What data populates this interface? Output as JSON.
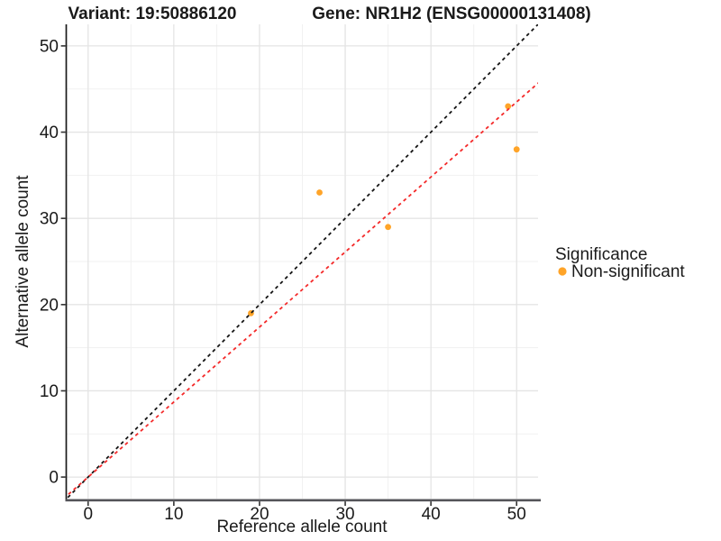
{
  "figure": {
    "titles": {
      "variant": "Variant: 19:50886120",
      "gene": "Gene: NR1H2 (ENSG00000131408)"
    },
    "legend": {
      "title": "Significance",
      "items": [
        {
          "label": "Non-significant",
          "color": "#FFA428"
        }
      ]
    }
  },
  "chart_data": {
    "type": "scatter",
    "title": "Variant: 19:50886120    Gene: NR1H2 (ENSG00000131408)",
    "xlabel": "Reference allele count",
    "ylabel": "Alternative allele count",
    "xlim": [
      -2.5,
      52.5
    ],
    "ylim": [
      -2.5,
      52.5
    ],
    "x_ticks": [
      0,
      10,
      20,
      30,
      40,
      50
    ],
    "y_ticks": [
      0,
      10,
      20,
      30,
      40,
      50
    ],
    "x_minor_ticks": [
      5,
      15,
      25,
      35,
      45
    ],
    "y_minor_ticks": [
      5,
      15,
      25,
      35,
      45
    ],
    "grid": "major+minor",
    "legend_position": "right",
    "series": [
      {
        "name": "Non-significant",
        "color": "#FFA428",
        "points": [
          [
            19,
            19
          ],
          [
            27,
            33
          ],
          [
            35,
            29
          ],
          [
            49,
            43
          ],
          [
            50,
            38
          ]
        ]
      }
    ],
    "reference_lines": [
      {
        "name": "identity",
        "slope": 1.0,
        "intercept": 0,
        "style": "dashed",
        "color": "#151515"
      },
      {
        "name": "fit",
        "slope": 0.87,
        "intercept": 0,
        "style": "dashed",
        "color": "#F42A2A"
      }
    ],
    "colors": {
      "grid_major": "#E4E4E4",
      "grid_minor": "#F1F1F1",
      "axis_line_y": "#1A1A1A",
      "axis_line_x": "#55555A",
      "tick": "#333333",
      "point": "#FFA428"
    }
  }
}
